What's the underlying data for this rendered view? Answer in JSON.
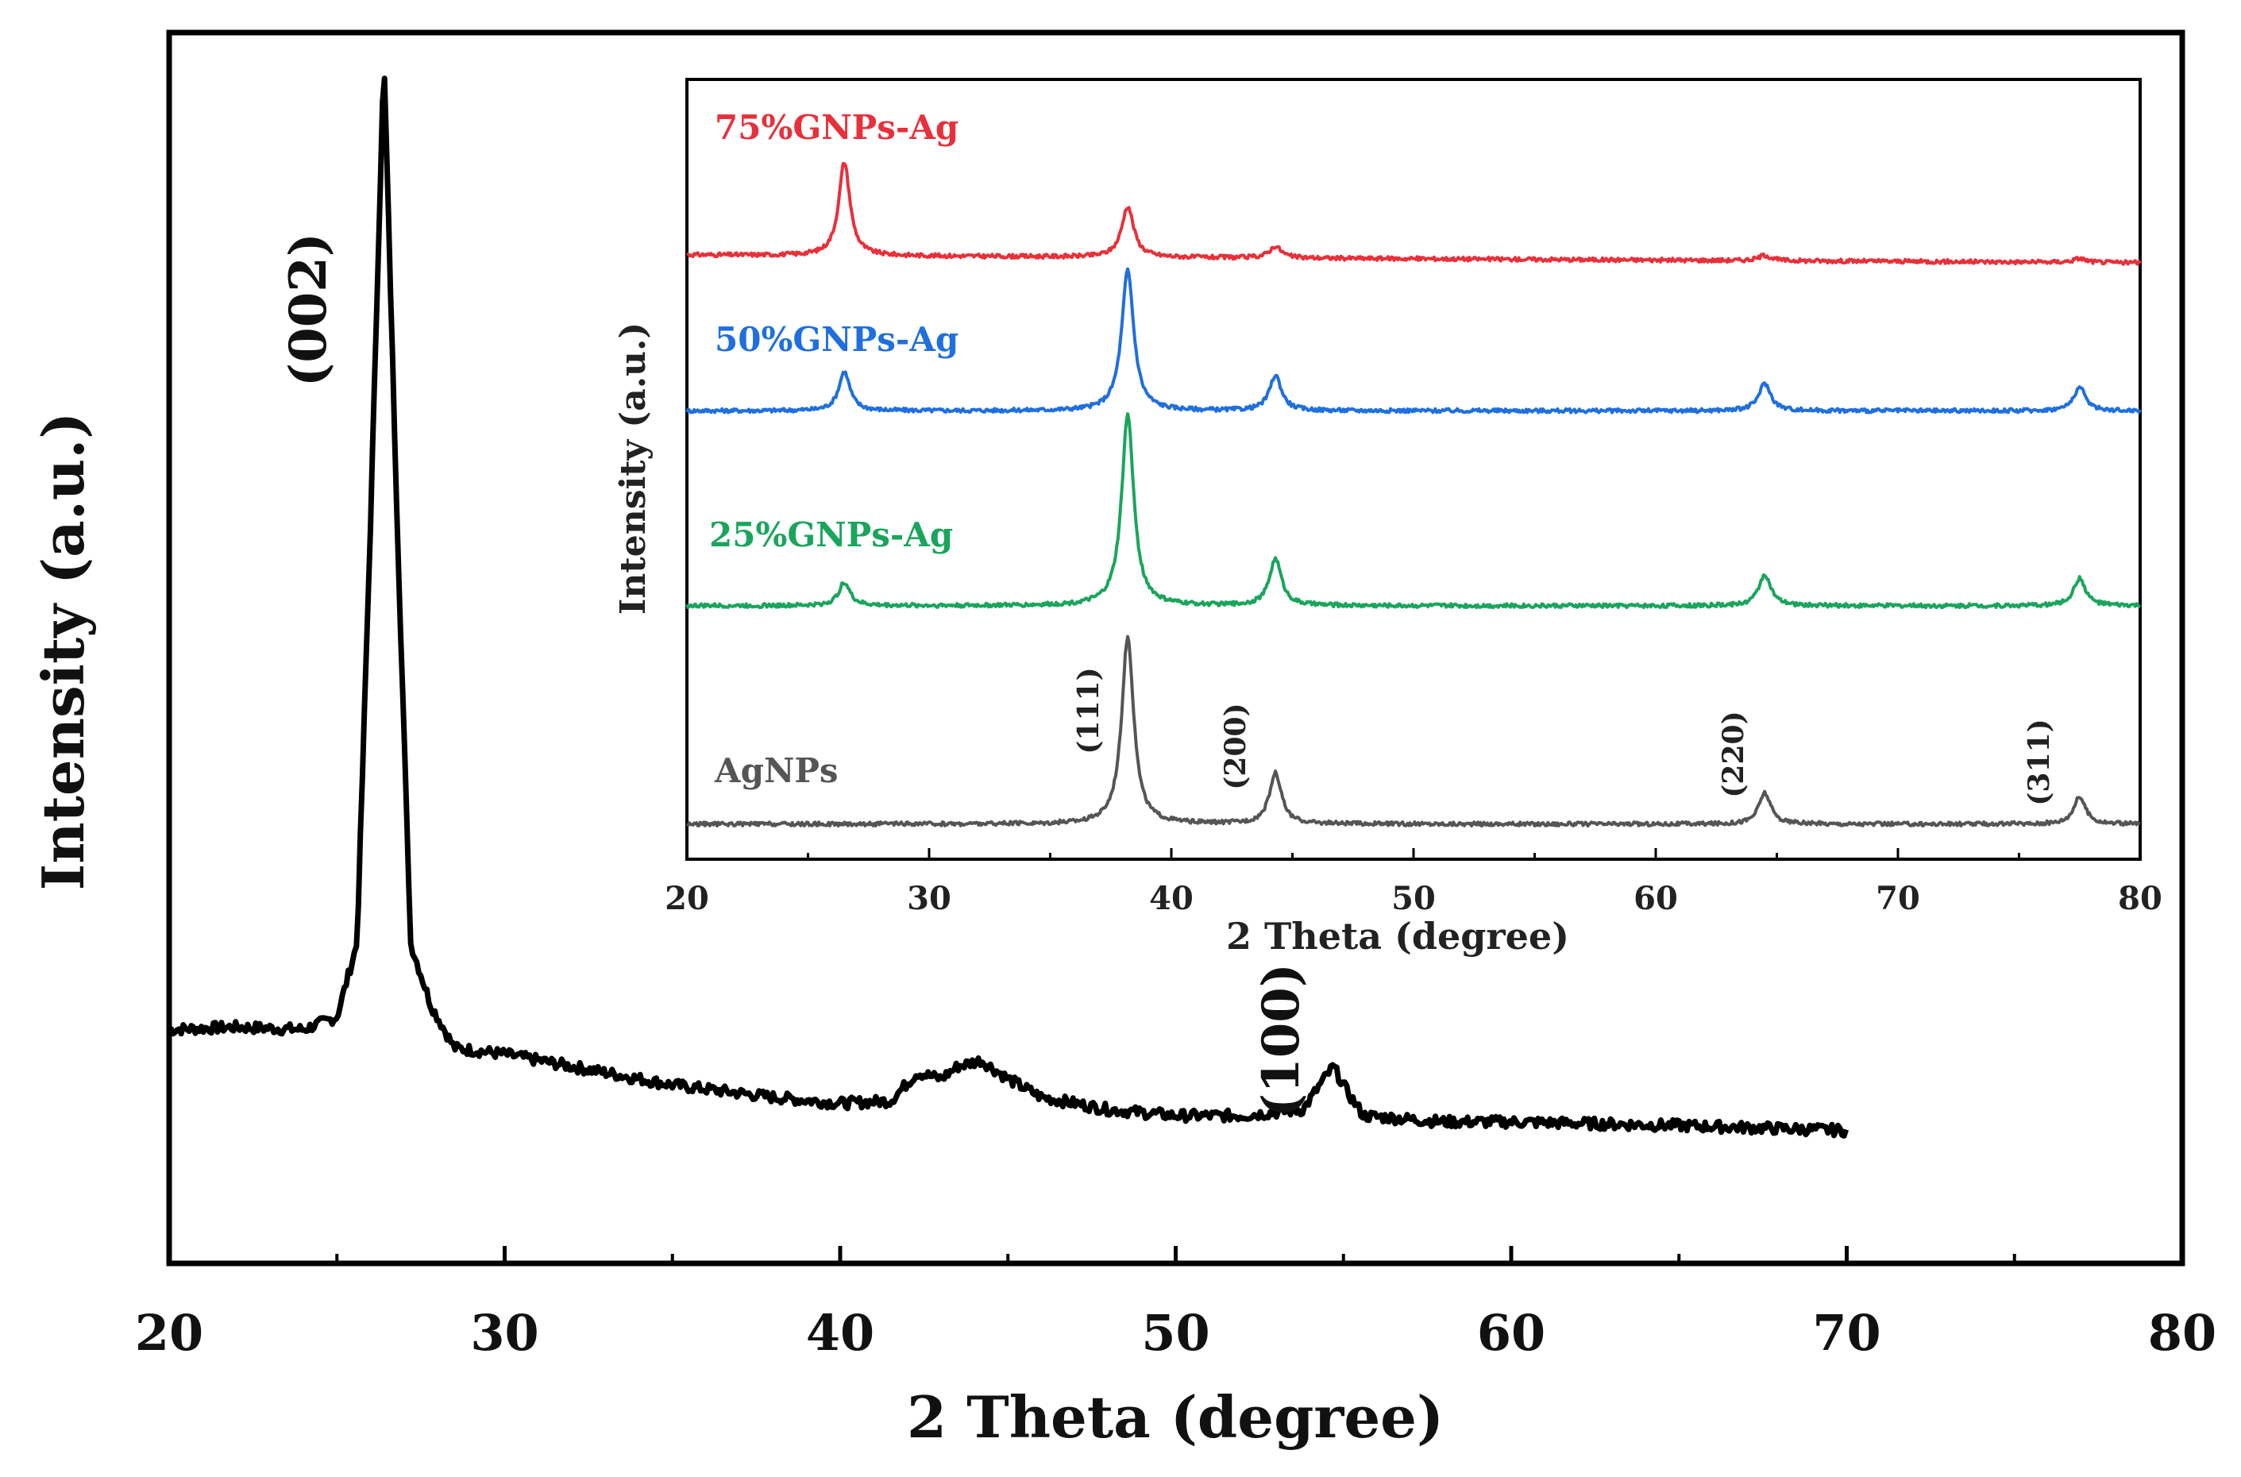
{
  "chart_data": [
    {
      "type": "line",
      "xlabel": "2 Theta (degree)",
      "ylabel": "Intensity (a.u.)",
      "xlim": [
        20,
        80
      ],
      "ylim": [
        0,
        100
      ],
      "x_ticks": [
        "20",
        "30",
        "40",
        "50",
        "60",
        "70",
        "80"
      ],
      "y_ticks_labeled": false,
      "grid": false,
      "series": [
        {
          "color": "#000000",
          "x": [
            20,
            22,
            24,
            25,
            25.6,
            26.0,
            26.4,
            26.8,
            27.2,
            27.8,
            28.5,
            30,
            32,
            35,
            38,
            40,
            41.5,
            42.3,
            43.0,
            43.5,
            44.2,
            45.0,
            46.0,
            48,
            50,
            52,
            53.8,
            54.3,
            54.7,
            55.1,
            55.6,
            58,
            60,
            65,
            70
          ],
          "values": [
            19,
            19.2,
            19,
            20,
            26,
            60,
            98,
            60,
            26,
            21,
            17.5,
            17,
            16,
            14.5,
            13.5,
            13,
            13.2,
            15.5,
            15,
            16,
            16.5,
            15,
            13.5,
            12.5,
            12,
            12,
            12.5,
            14.5,
            16,
            14,
            12,
            11.5,
            11.5,
            11.2,
            10.8
          ]
        }
      ],
      "annotations": [
        {
          "text": "(002)",
          "x": 26.4
        },
        {
          "text": "(100)",
          "x": 54.7
        }
      ]
    },
    {
      "type": "line",
      "inset": true,
      "xlabel": "2 Theta (degree)",
      "ylabel": "Intensity (a.u.)",
      "xlim": [
        20,
        80
      ],
      "ylim": [
        0,
        100
      ],
      "x_ticks": [
        "20",
        "30",
        "40",
        "50",
        "60",
        "70",
        "80"
      ],
      "y_ticks_labeled": false,
      "grid": false,
      "series": [
        {
          "name": "75%GNPs-Ag",
          "color": "#e8303a",
          "baseline": 77.5,
          "slope": -1.0,
          "peaks": [
            [
              26.5,
              12.0,
              0.28
            ],
            [
              38.2,
              6.5,
              0.3
            ],
            [
              44.3,
              1.5,
              0.3
            ],
            [
              64.5,
              0.7,
              0.3
            ],
            [
              77.5,
              0.5,
              0.3
            ]
          ]
        },
        {
          "name": "50%GNPs-Ag",
          "color": "#1f6fde",
          "baseline": 57.5,
          "slope": 0,
          "peaks": [
            [
              26.5,
              5.0,
              0.28
            ],
            [
              38.2,
              18.0,
              0.3
            ],
            [
              44.3,
              4.5,
              0.3
            ],
            [
              64.5,
              3.5,
              0.3
            ],
            [
              77.5,
              3.0,
              0.3
            ]
          ]
        },
        {
          "name": "25%GNPs-Ag",
          "color": "#1aa55c",
          "baseline": 32.5,
          "slope": 0,
          "peaks": [
            [
              26.5,
              3.0,
              0.28
            ],
            [
              38.2,
              24.5,
              0.3
            ],
            [
              44.3,
              6.0,
              0.3
            ],
            [
              64.5,
              4.0,
              0.3
            ],
            [
              77.5,
              3.5,
              0.3
            ]
          ]
        },
        {
          "name": "AgNPs",
          "color": "#555555",
          "baseline": 4.5,
          "slope": 0,
          "peaks": [
            [
              38.2,
              24.0,
              0.3
            ],
            [
              44.3,
              6.5,
              0.3
            ],
            [
              64.5,
              4.0,
              0.3
            ],
            [
              77.5,
              3.5,
              0.3
            ]
          ]
        }
      ],
      "annotations": [
        {
          "text": "(111)",
          "x": 37.5
        },
        {
          "text": "(200)",
          "x": 42.5
        },
        {
          "text": "(220)",
          "x": 63.5
        },
        {
          "text": "(311)",
          "x": 76.5
        }
      ]
    }
  ]
}
